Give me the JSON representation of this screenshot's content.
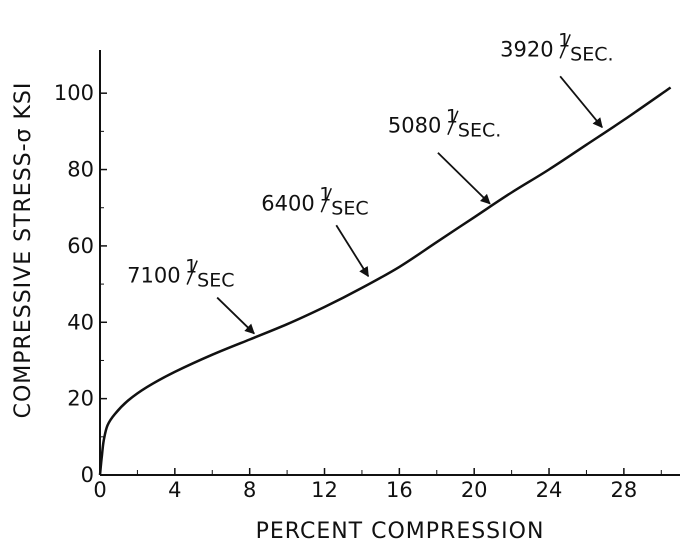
{
  "chart_data": {
    "type": "line",
    "xlabel": "PERCENT COMPRESSION",
    "ylabel": "COMPRESSIVE STRESS-σ KSI",
    "xlim": [
      0,
      31
    ],
    "ylim": [
      0,
      110
    ],
    "x_ticks": [
      0,
      4,
      8,
      12,
      16,
      20,
      24,
      28
    ],
    "x_minor_ticks": [
      2,
      6,
      10,
      14,
      18,
      22,
      26,
      30
    ],
    "y_ticks": [
      0,
      20,
      40,
      60,
      80,
      100
    ],
    "y_minor_ticks": [
      10,
      30,
      50,
      70,
      90
    ],
    "grid": false,
    "series": [
      {
        "x": [
          0,
          0.1,
          0.2,
          0.4,
          0.8,
          1.5,
          2.5,
          4,
          6,
          8,
          10,
          12,
          14,
          16,
          18,
          20,
          22,
          24,
          26,
          28,
          30.5
        ],
        "y": [
          0,
          5,
          9,
          13,
          16,
          19.5,
          23,
          27,
          31.5,
          35.5,
          39.5,
          44,
          49,
          54.5,
          61,
          67.5,
          74,
          80,
          86.5,
          93,
          101.5
        ]
      }
    ],
    "annotations": [
      {
        "value": "7100",
        "unit_num": "1",
        "unit_den": "SEC",
        "x": 8.4,
        "y": 36
      },
      {
        "value": "6400",
        "unit_num": "1",
        "unit_den": "SEC",
        "x": 14.5,
        "y": 51
      },
      {
        "value": "5080",
        "unit_num": "1",
        "unit_den": "SEC.",
        "x": 21,
        "y": 70
      },
      {
        "value": "3920",
        "unit_num": "1",
        "unit_den": "SEC.",
        "x": 27,
        "y": 90
      }
    ]
  }
}
